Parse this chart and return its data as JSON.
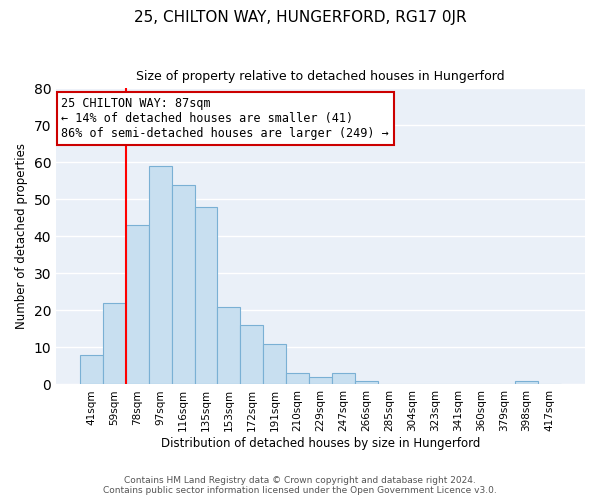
{
  "title": "25, CHILTON WAY, HUNGERFORD, RG17 0JR",
  "subtitle": "Size of property relative to detached houses in Hungerford",
  "xlabel": "Distribution of detached houses by size in Hungerford",
  "ylabel": "Number of detached properties",
  "bar_color": "#c8dff0",
  "bar_edge_color": "#7ab0d4",
  "background_color": "#eaf0f8",
  "grid_color": "white",
  "categories": [
    "41sqm",
    "59sqm",
    "78sqm",
    "97sqm",
    "116sqm",
    "135sqm",
    "153sqm",
    "172sqm",
    "191sqm",
    "210sqm",
    "229sqm",
    "247sqm",
    "266sqm",
    "285sqm",
    "304sqm",
    "323sqm",
    "341sqm",
    "360sqm",
    "379sqm",
    "398sqm",
    "417sqm"
  ],
  "values": [
    8,
    22,
    43,
    59,
    54,
    48,
    21,
    16,
    11,
    3,
    2,
    3,
    1,
    0,
    0,
    0,
    0,
    0,
    0,
    1,
    0
  ],
  "vline_color": "red",
  "annotation_line1": "25 CHILTON WAY: 87sqm",
  "annotation_line2": "← 14% of detached houses are smaller (41)",
  "annotation_line3": "86% of semi-detached houses are larger (249) →",
  "annotation_box_color": "white",
  "annotation_box_edge_color": "#cc0000",
  "ylim": [
    0,
    80
  ],
  "yticks": [
    0,
    10,
    20,
    30,
    40,
    50,
    60,
    70,
    80
  ],
  "footnote1": "Contains HM Land Registry data © Crown copyright and database right 2024.",
  "footnote2": "Contains public sector information licensed under the Open Government Licence v3.0."
}
